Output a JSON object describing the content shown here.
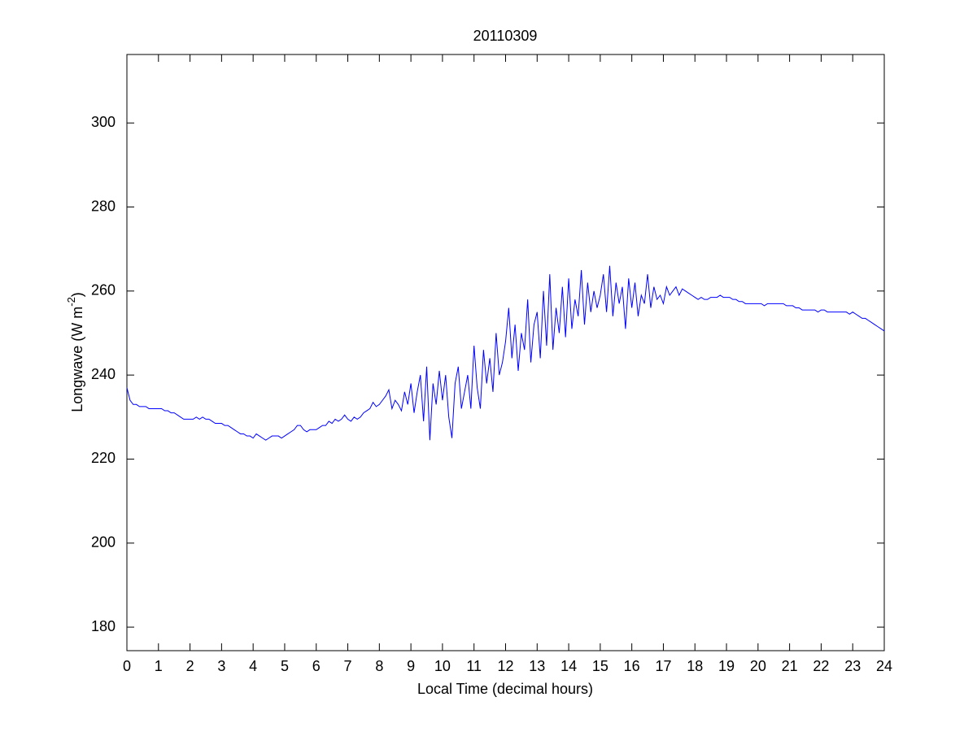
{
  "chart_data": {
    "type": "line",
    "title": "20110309",
    "x_label": "Local Time (decimal hours)",
    "y_label_parts": [
      "Longwave (W m",
      "-2",
      ")"
    ],
    "xlim": [
      0,
      24
    ],
    "xticks": [
      0,
      1,
      2,
      3,
      4,
      5,
      6,
      7,
      8,
      9,
      10,
      11,
      12,
      13,
      14,
      15,
      16,
      17,
      18,
      19,
      20,
      21,
      22,
      23,
      24
    ],
    "ylim": [
      174.4,
      316.3
    ],
    "yticks": [
      180,
      200,
      220,
      240,
      260,
      280,
      300
    ],
    "grid": false,
    "x": [
      0,
      0.1,
      0.2,
      0.3,
      0.4,
      0.5,
      0.6,
      0.7,
      0.8,
      0.9,
      1,
      1.1,
      1.2,
      1.3,
      1.4,
      1.5,
      1.6,
      1.7,
      1.8,
      1.9,
      2,
      2.1,
      2.2,
      2.3,
      2.4,
      2.5,
      2.6,
      2.7,
      2.8,
      2.9,
      3,
      3.1,
      3.2,
      3.3,
      3.4,
      3.5,
      3.6,
      3.7,
      3.8,
      3.9,
      4,
      4.1,
      4.2,
      4.3,
      4.4,
      4.5,
      4.6,
      4.7,
      4.8,
      4.9,
      5,
      5.1,
      5.2,
      5.3,
      5.4,
      5.5,
      5.6,
      5.7,
      5.8,
      5.9,
      6,
      6.1,
      6.2,
      6.3,
      6.4,
      6.5,
      6.6,
      6.7,
      6.8,
      6.9,
      7,
      7.1,
      7.2,
      7.3,
      7.4,
      7.5,
      7.6,
      7.7,
      7.8,
      7.9,
      8,
      8.1,
      8.2,
      8.3,
      8.4,
      8.5,
      8.6,
      8.7,
      8.8,
      8.9,
      9,
      9.1,
      9.2,
      9.3,
      9.4,
      9.5,
      9.6,
      9.7,
      9.8,
      9.9,
      10,
      10.1,
      10.2,
      10.3,
      10.4,
      10.5,
      10.6,
      10.7,
      10.8,
      10.9,
      11,
      11.1,
      11.2,
      11.3,
      11.4,
      11.5,
      11.6,
      11.7,
      11.8,
      11.9,
      12,
      12.1,
      12.2,
      12.3,
      12.4,
      12.5,
      12.6,
      12.7,
      12.8,
      12.9,
      13,
      13.1,
      13.2,
      13.3,
      13.4,
      13.5,
      13.6,
      13.7,
      13.8,
      13.9,
      14,
      14.1,
      14.2,
      14.3,
      14.4,
      14.5,
      14.6,
      14.7,
      14.8,
      14.9,
      15,
      15.1,
      15.2,
      15.3,
      15.4,
      15.5,
      15.6,
      15.7,
      15.8,
      15.9,
      16,
      16.1,
      16.2,
      16.3,
      16.4,
      16.5,
      16.6,
      16.7,
      16.8,
      16.9,
      17,
      17.1,
      17.2,
      17.3,
      17.4,
      17.5,
      17.6,
      17.7,
      17.8,
      17.9,
      18,
      18.1,
      18.2,
      18.3,
      18.4,
      18.5,
      18.6,
      18.7,
      18.8,
      18.9,
      19,
      19.1,
      19.2,
      19.3,
      19.4,
      19.5,
      19.6,
      19.7,
      19.8,
      19.9,
      20,
      20.1,
      20.2,
      20.3,
      20.4,
      20.5,
      20.6,
      20.7,
      20.8,
      20.9,
      21,
      21.1,
      21.2,
      21.3,
      21.4,
      21.5,
      21.6,
      21.7,
      21.8,
      21.9,
      22,
      22.1,
      22.2,
      22.3,
      22.4,
      22.5,
      22.6,
      22.7,
      22.8,
      22.9,
      23,
      23.1,
      23.2,
      23.3,
      23.4,
      23.5,
      23.6,
      23.7,
      23.8,
      23.9,
      24
    ],
    "series": [
      {
        "color": "#0000ff",
        "values": [
          237,
          234,
          233,
          233,
          232.5,
          232.5,
          232.5,
          232,
          232,
          232,
          232,
          232,
          231.5,
          231.5,
          231,
          231,
          230.5,
          230,
          229.5,
          229.5,
          229.5,
          229.5,
          230,
          229.5,
          230,
          229.5,
          229.5,
          229,
          228.5,
          228.5,
          228.5,
          228,
          228,
          227.5,
          227,
          226.5,
          226,
          226,
          225.5,
          225.5,
          225,
          226,
          225.5,
          225,
          224.5,
          225,
          225.5,
          225.5,
          225.5,
          225,
          225.5,
          226,
          226.5,
          227,
          228,
          228,
          227,
          226.5,
          227,
          227,
          227,
          227.5,
          228,
          228,
          229,
          228.5,
          229.5,
          229,
          229.5,
          230.5,
          229.5,
          229,
          230,
          229.5,
          230,
          231,
          231.5,
          232,
          233.5,
          232.5,
          233,
          234,
          235,
          236.5,
          232,
          234,
          233,
          231.5,
          236,
          233,
          238,
          231,
          236,
          240,
          229,
          242,
          224.5,
          238,
          233,
          241,
          234,
          240,
          230,
          225,
          238,
          242,
          232,
          236,
          240,
          232,
          247,
          237,
          232,
          246,
          238,
          244,
          236,
          250,
          240,
          243,
          248,
          256,
          244,
          252,
          241,
          250,
          246,
          258,
          243,
          252,
          255,
          244,
          260,
          247,
          264,
          246,
          256,
          250,
          261,
          249,
          263,
          251,
          258,
          254,
          265,
          252,
          262,
          255,
          260,
          256,
          259,
          264,
          255,
          266,
          254,
          262,
          257,
          261,
          251,
          263,
          256,
          262,
          254,
          259,
          257,
          264,
          256,
          261,
          258,
          259,
          257,
          261,
          259,
          260,
          261,
          259,
          260.5,
          260,
          259.5,
          259,
          258.5,
          258,
          258.5,
          258,
          258,
          258.5,
          258.5,
          258.5,
          259,
          258.5,
          258.5,
          258.5,
          258,
          258,
          257.5,
          257.5,
          257,
          257,
          257,
          257,
          257,
          257,
          256.5,
          257,
          257,
          257,
          257,
          257,
          257,
          256.5,
          256.5,
          256.5,
          256,
          256,
          255.5,
          255.5,
          255.5,
          255.5,
          255.5,
          255,
          255.5,
          255.5,
          255,
          255,
          255,
          255,
          255,
          255,
          255,
          254.5,
          255,
          254.5,
          254,
          253.5,
          253.5,
          253,
          252.5,
          252,
          251.5,
          251,
          250.5
        ]
      }
    ]
  }
}
